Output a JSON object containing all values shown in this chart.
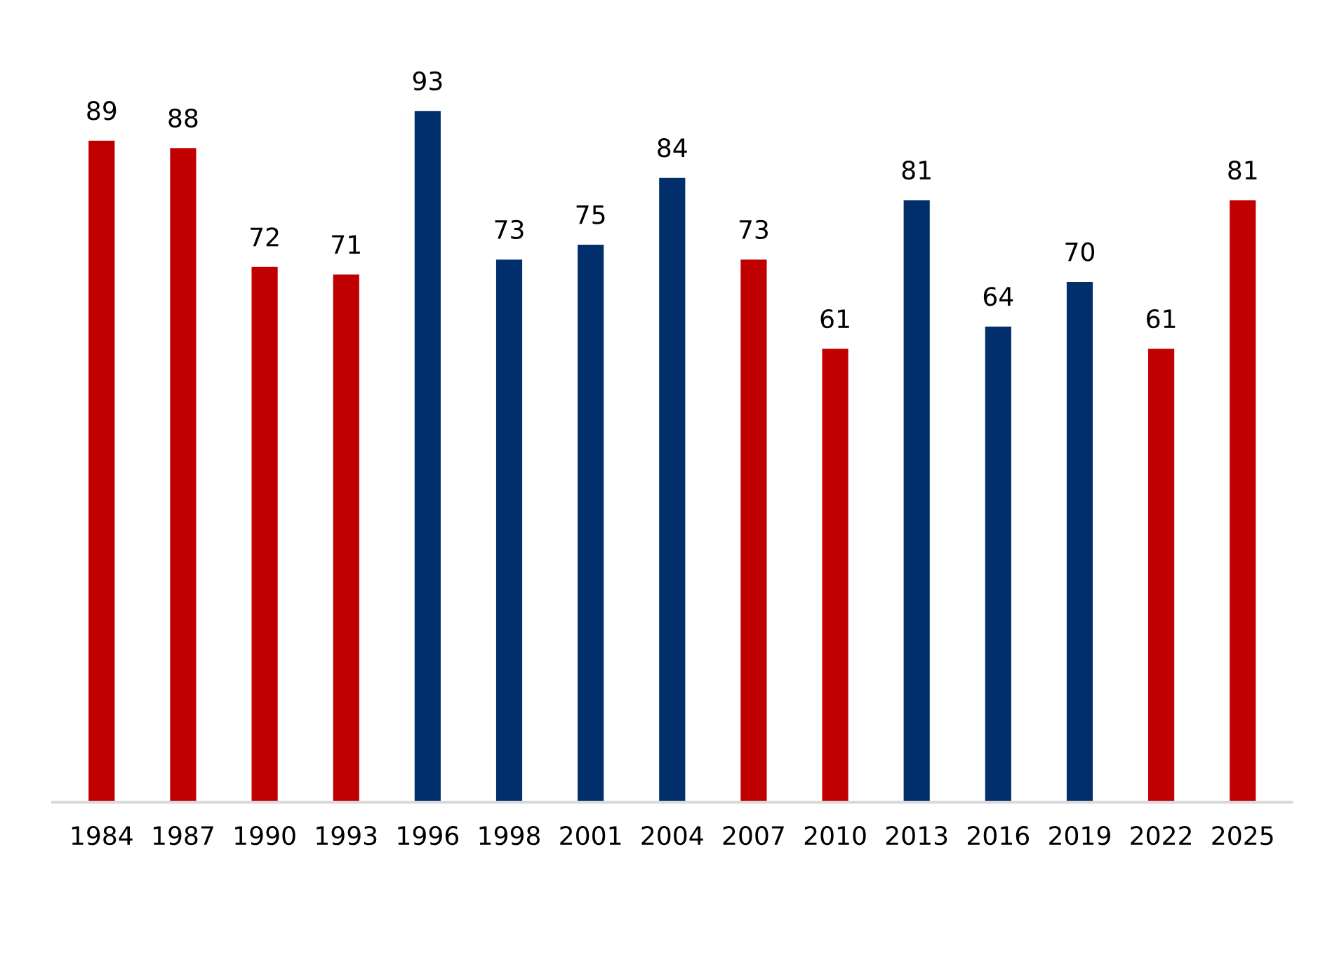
{
  "chart_data": {
    "type": "bar",
    "categories": [
      "1984",
      "1987",
      "1990",
      "1993",
      "1996",
      "1998",
      "2001",
      "2004",
      "2007",
      "2010",
      "2013",
      "2016",
      "2019",
      "2022",
      "2025"
    ],
    "values": [
      89,
      88,
      72,
      71,
      93,
      73,
      75,
      84,
      73,
      61,
      81,
      64,
      70,
      61,
      81
    ],
    "colors": [
      "#c00000",
      "#c00000",
      "#c00000",
      "#c00000",
      "#002f6c",
      "#002f6c",
      "#002f6c",
      "#002f6c",
      "#c00000",
      "#c00000",
      "#002f6c",
      "#002f6c",
      "#002f6c",
      "#c00000",
      "#c00000"
    ],
    "data_labels": true,
    "grid": false,
    "legend": false
  }
}
